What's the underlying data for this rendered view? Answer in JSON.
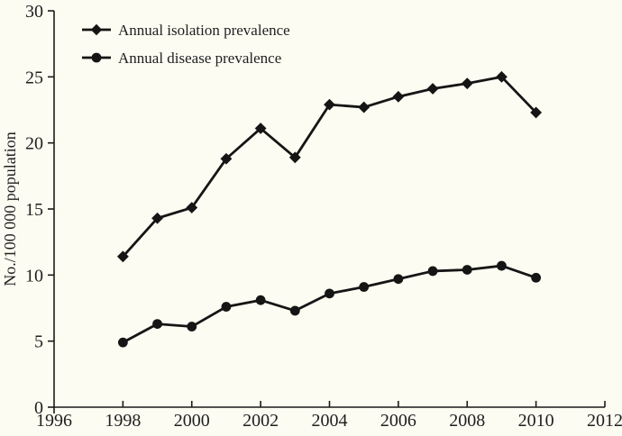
{
  "figure": {
    "background_color": "#fcfcf2",
    "line_color": "#151515",
    "axis_color": "#1a1a1a",
    "text_color": "#1f1f1f"
  },
  "chart_data": {
    "type": "line",
    "title": "",
    "xlabel": "",
    "ylabel": "No./100 000 population",
    "xlim": [
      1996,
      2012
    ],
    "ylim": [
      0,
      30
    ],
    "x_ticks": [
      1996,
      1998,
      2000,
      2002,
      2004,
      2006,
      2008,
      2010,
      2012
    ],
    "y_ticks": [
      0,
      5,
      10,
      15,
      20,
      25,
      30
    ],
    "grid": "off",
    "legend_position": "top-left-inside",
    "x": [
      1998,
      1999,
      2000,
      2001,
      2002,
      2003,
      2004,
      2005,
      2006,
      2007,
      2008,
      2009,
      2010
    ],
    "series": [
      {
        "name": "Annual isolation prevalence",
        "marker": "diamond",
        "values": [
          11.4,
          14.3,
          15.1,
          18.8,
          21.1,
          18.9,
          22.9,
          22.7,
          23.5,
          24.1,
          24.5,
          25.0,
          22.3
        ]
      },
      {
        "name": "Annual disease prevalence",
        "marker": "circle",
        "values": [
          4.9,
          6.3,
          6.1,
          7.6,
          8.1,
          7.3,
          8.6,
          9.1,
          9.7,
          10.3,
          10.4,
          10.7,
          9.8
        ]
      }
    ]
  },
  "legend": {
    "items": [
      {
        "label": "Annual isolation prevalence",
        "icon": "diamond-icon"
      },
      {
        "label": "Annual disease prevalence",
        "icon": "circle-icon"
      }
    ]
  }
}
